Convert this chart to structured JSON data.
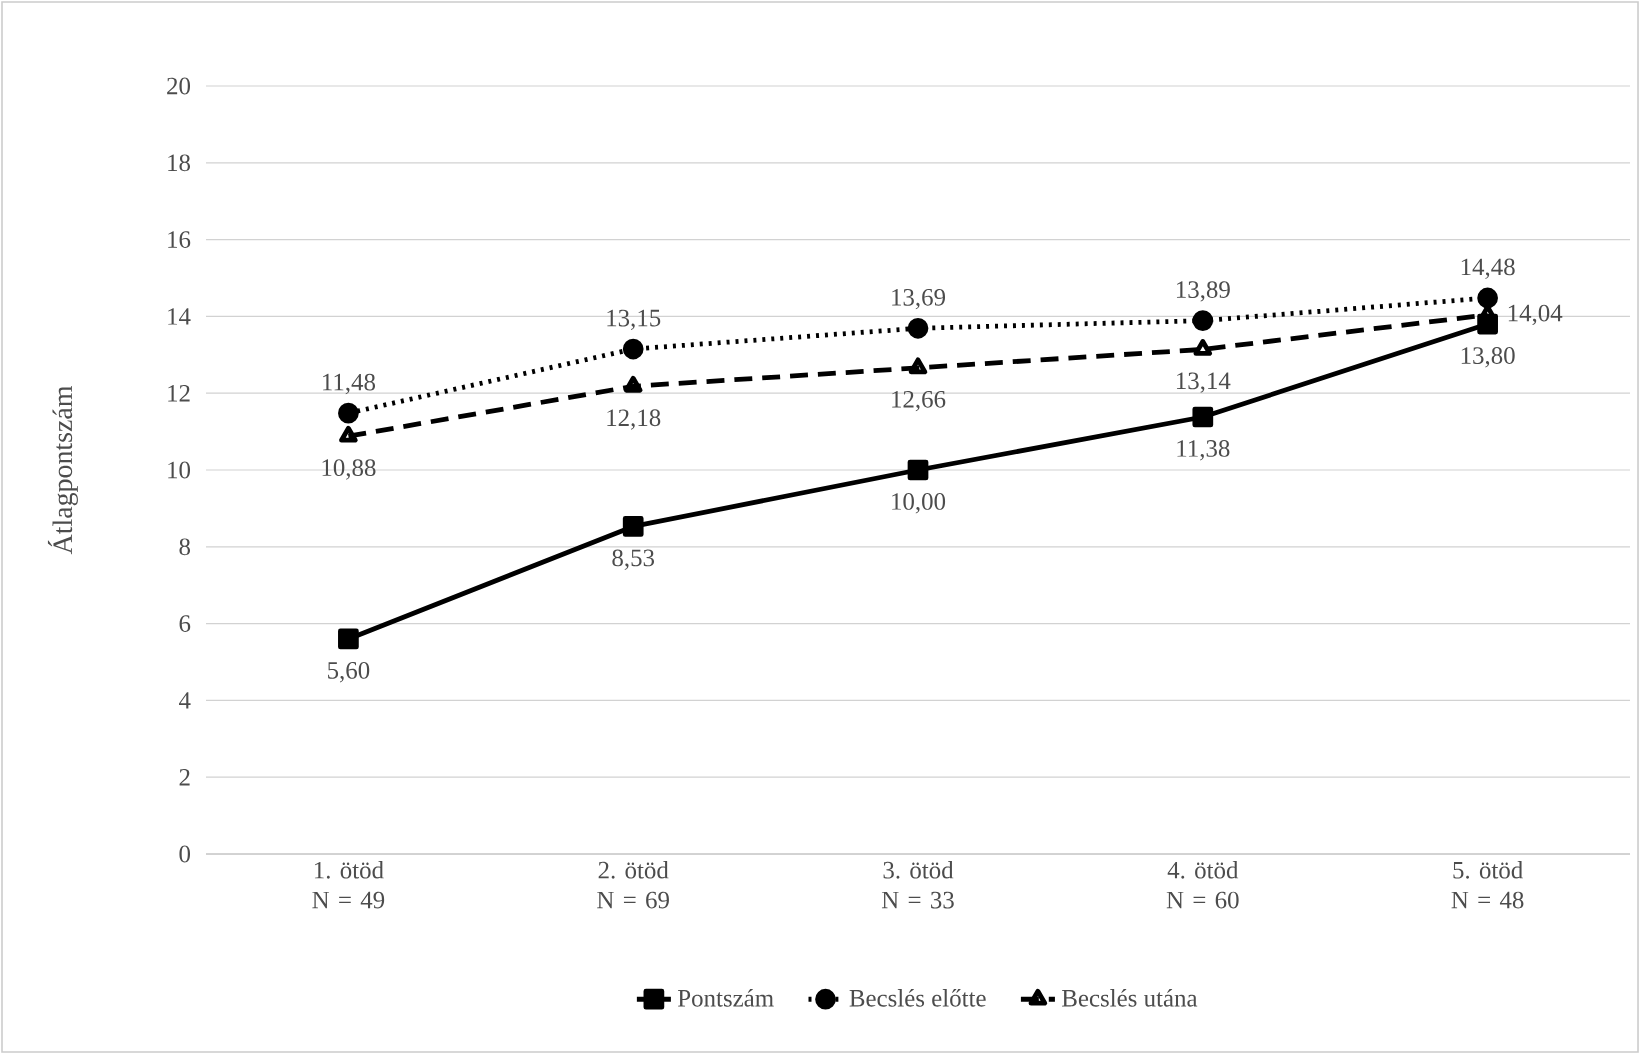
{
  "chart_data": {
    "type": "line",
    "ylabel": "Átlagpontszám",
    "categories": [
      "1. ötöd N = 49",
      "2. ötöd N = 69",
      "3. ötöd N = 33",
      "4. ötöd N = 60",
      "5. ötöd N = 48"
    ],
    "series": [
      {
        "name": "Pontszám",
        "color": "#000000",
        "marker": "square",
        "line_style": "solid",
        "values": [
          5.6,
          8.53,
          10.0,
          11.38,
          13.8
        ],
        "value_labels": [
          "5,60",
          "8,53",
          "10,00",
          "11,38",
          "13,80"
        ]
      },
      {
        "name": "Becslés előtte",
        "color": "#000000",
        "marker": "circle",
        "line_style": "dotted",
        "values": [
          11.48,
          13.15,
          13.69,
          13.89,
          14.48
        ],
        "value_labels": [
          "11,48",
          "13,15",
          "13,69",
          "13,89",
          "14,48"
        ]
      },
      {
        "name": "Becslés utána",
        "color": "#000000",
        "marker": "triangle",
        "line_style": "dashed",
        "values": [
          10.88,
          12.18,
          12.66,
          13.14,
          14.04
        ],
        "value_labels": [
          "10,88",
          "12,18",
          "12,66",
          "13,14",
          "14,04"
        ]
      }
    ],
    "ylim": [
      0,
      20
    ],
    "yticks": [
      0,
      2,
      4,
      6,
      8,
      10,
      12,
      14,
      16,
      18,
      20
    ],
    "grid": "y",
    "legend": "bottom"
  }
}
